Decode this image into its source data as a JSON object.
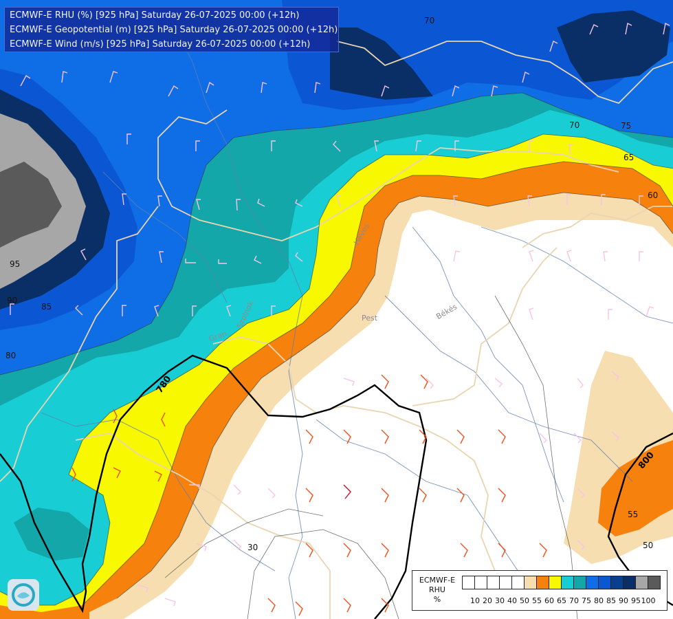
{
  "header": {
    "lines": [
      "ECMWF-E RHU (%) [925 hPa] Saturday 26-07-2025 00:00 (+12h)",
      "ECMWF-E Geopotential (m) [925 hPa] Saturday 26-07-2025 00:00 (+12h)",
      "ECMWF-E Wind (m/s) [925 hPa] Saturday 26-07-2025 00:00 (+12h)"
    ]
  },
  "legend": {
    "title_line1": "ECMWF-E",
    "title_line2": "RHU",
    "title_line3": "%",
    "colors": [
      "#ffffff",
      "#ffffff",
      "#ffffff",
      "#ffffff",
      "#ffffff",
      "#f7deb0",
      "#f6820d",
      "#f8f800",
      "#18cdd3",
      "#13a7a9",
      "#0f6ee6",
      "#0b57d3",
      "#0a3f8f",
      "#0a2f66",
      "#a7a7a7",
      "#5a5a5a"
    ],
    "ticks": [
      "10",
      "20",
      "30",
      "40",
      "50",
      "55",
      "60",
      "65",
      "70",
      "75",
      "80",
      "85",
      "90",
      "95",
      "100"
    ]
  },
  "map": {
    "rh_contour_labels": [
      "70",
      "70",
      "75",
      "65",
      "60",
      "95",
      "90",
      "85",
      "80",
      "55",
      "50",
      "30"
    ],
    "geopotential_labels": [
      "780",
      "800"
    ],
    "place_labels": [
      "Heves",
      "Pest",
      "Békés",
      "Szolnok",
      "Gran"
    ]
  }
}
